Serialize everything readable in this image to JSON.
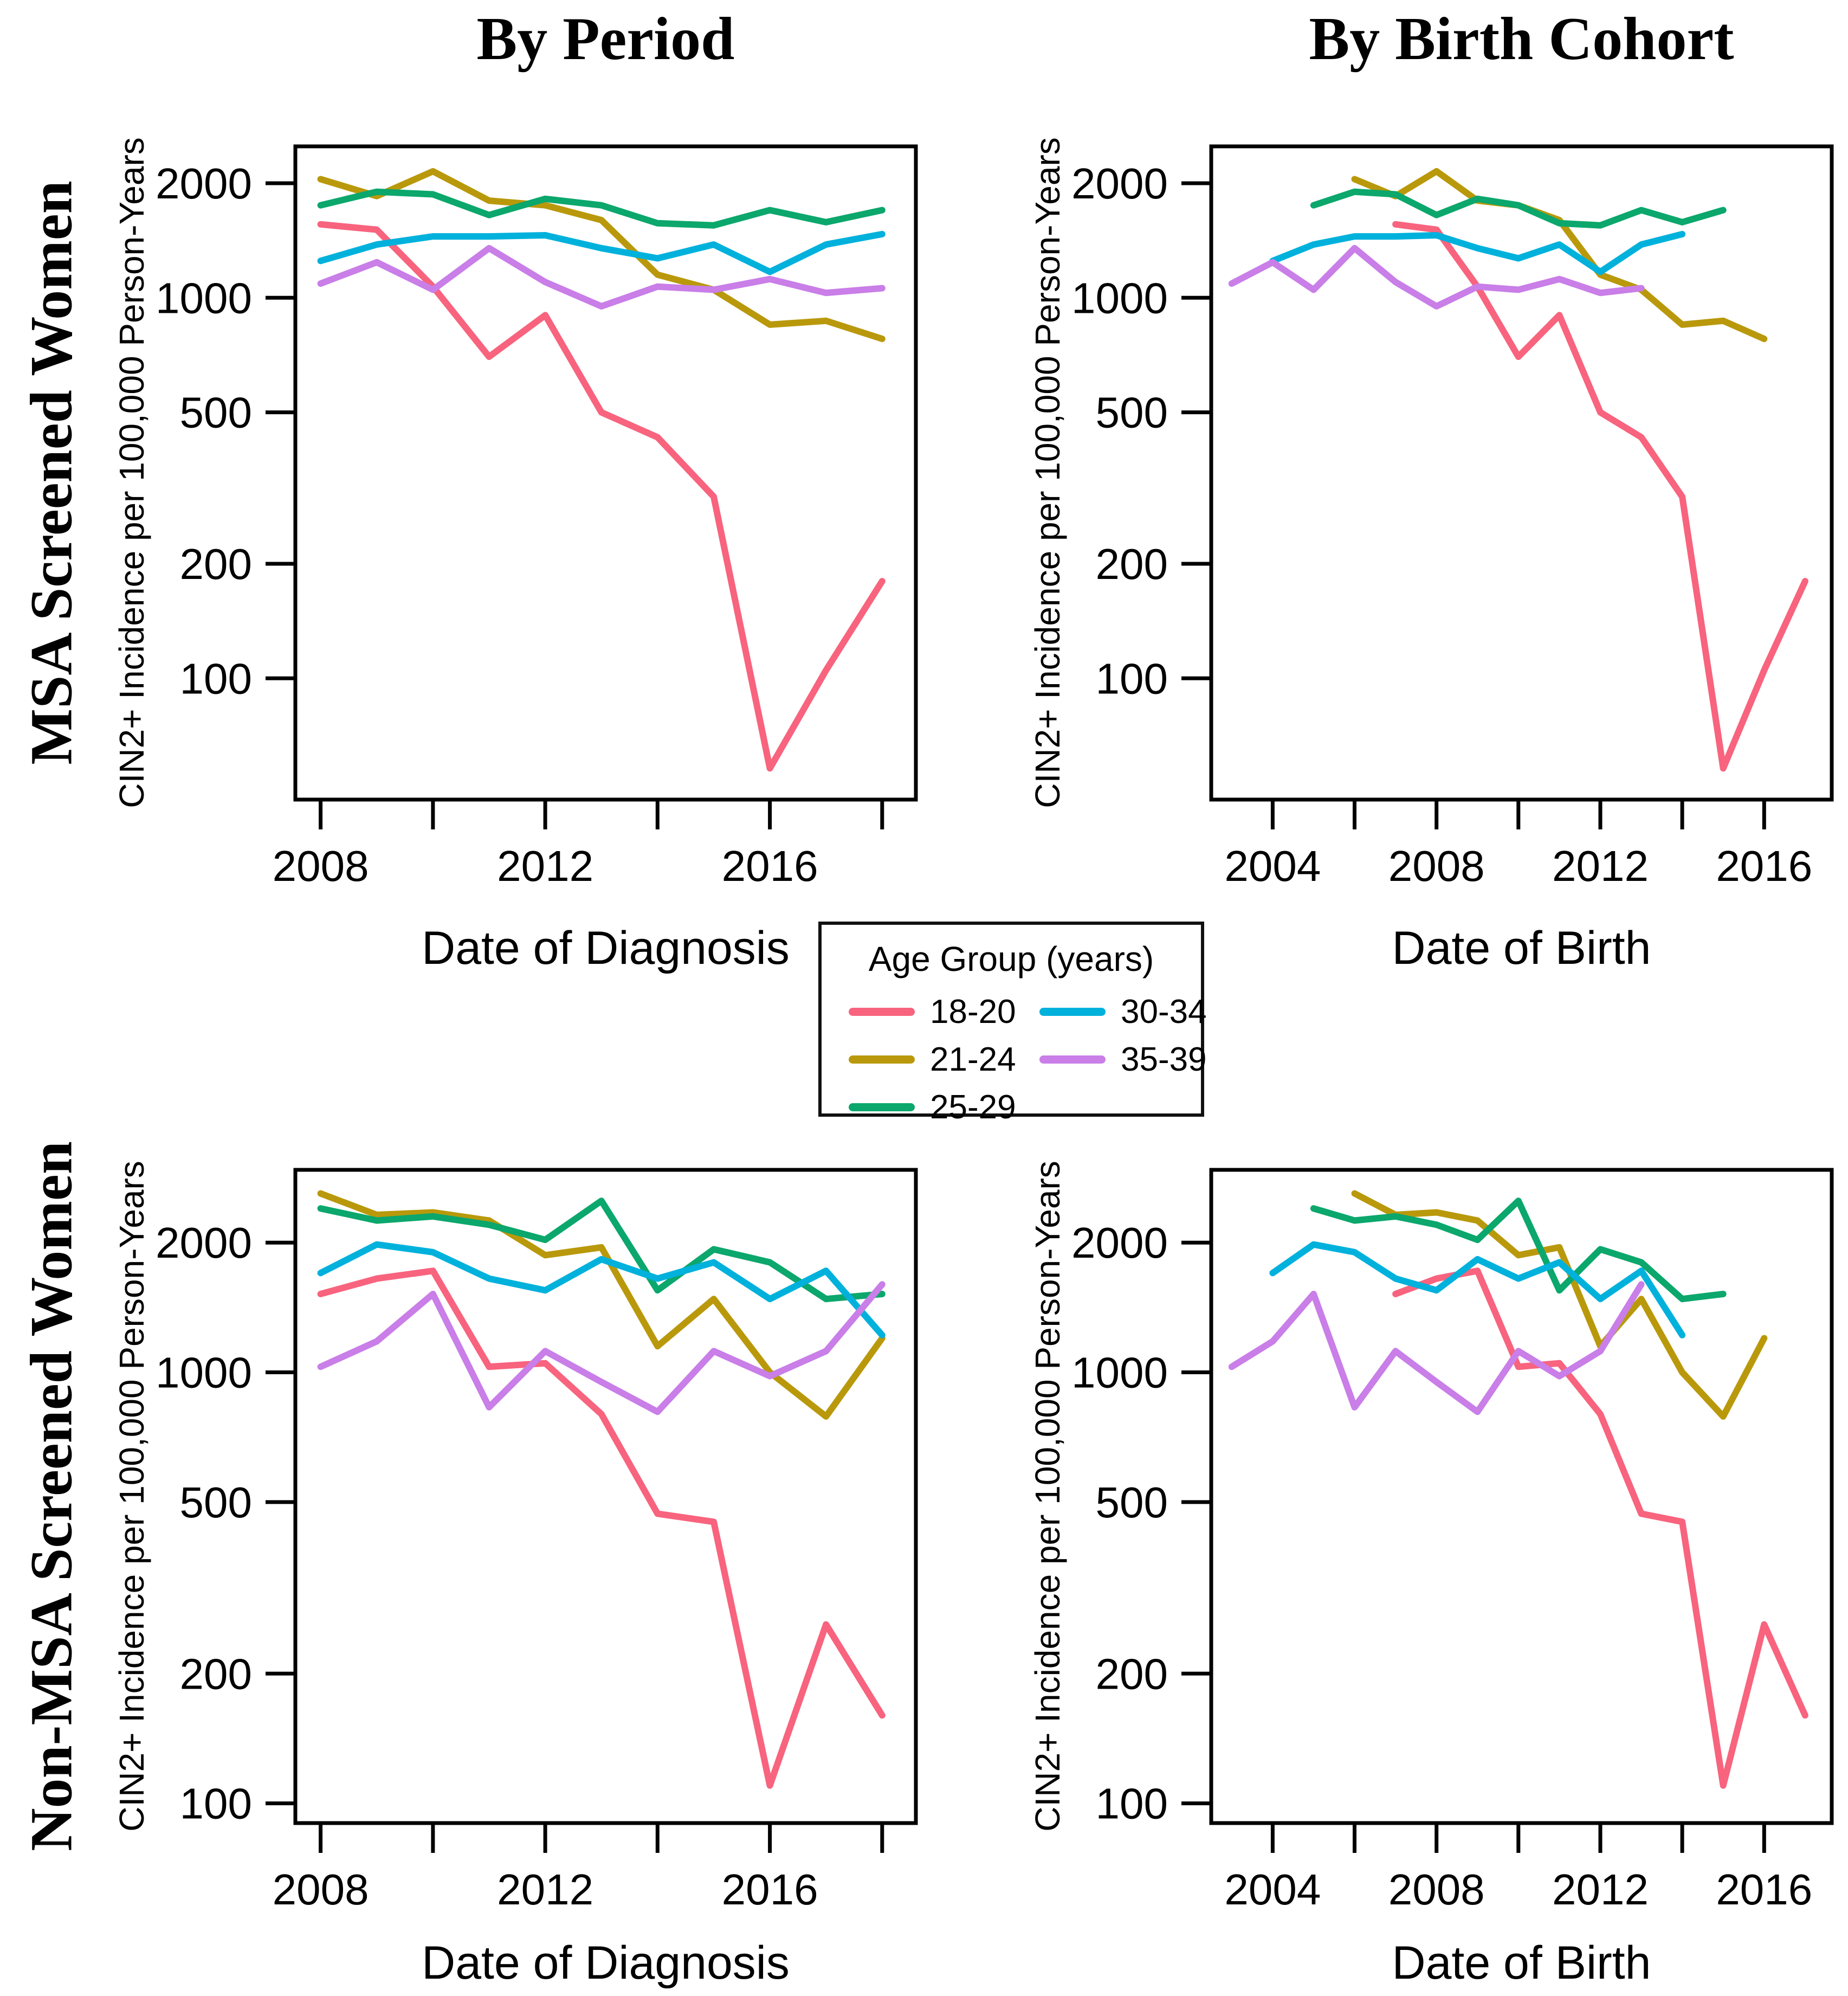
{
  "figure": {
    "column_titles": [
      "By Period",
      "By Birth Cohort"
    ],
    "row_labels": [
      "MSA Screened Women",
      "Non-MSA Screened Women"
    ],
    "y_axis_label": "CIN2+ Incidence per 100,000 Person-Years",
    "x_axis_label_period": "Date of Diagnosis",
    "x_axis_label_cohort": "Date of Birth"
  },
  "legend": {
    "title": "Age Group (years)",
    "items": [
      {
        "label": "18-20",
        "color": "#F8637E"
      },
      {
        "label": "21-24",
        "color": "#B9990B"
      },
      {
        "label": "25-29",
        "color": "#0BA76C"
      },
      {
        "label": "30-34",
        "color": "#00B1DC"
      },
      {
        "label": "35-39",
        "color": "#C97EE8"
      }
    ]
  },
  "chart_data": [
    {
      "id": "msa-period",
      "type": "line",
      "panel_row": "MSA Screened Women",
      "panel_column": "By Period",
      "title": "By Period",
      "xlabel": "Date of Diagnosis",
      "ylabel": "CIN2+ Incidence per 100,000 Person-Years",
      "x_scale": "linear",
      "y_scale": "log",
      "xlim": [
        2007.55,
        2018.6
      ],
      "ylim": [
        48,
        2500
      ],
      "x_ticks": [
        2008,
        2010,
        2012,
        2014,
        2016,
        2018
      ],
      "x_labeled_ticks": [
        2008,
        2012,
        2016
      ],
      "y_ticks": [
        100,
        200,
        500,
        1000,
        2000
      ],
      "grid": false,
      "series": [
        {
          "name": "18-20",
          "x": [
            2008,
            2009,
            2010,
            2011,
            2012,
            2013,
            2014,
            2015,
            2016,
            2017,
            2018
          ],
          "y": [
            1560,
            1510,
            1070,
            700,
            900,
            500,
            430,
            300,
            58,
            105,
            180
          ]
        },
        {
          "name": "21-24",
          "x": [
            2008,
            2009,
            2010,
            2011,
            2012,
            2013,
            2014,
            2015,
            2016,
            2017,
            2018
          ],
          "y": [
            2050,
            1850,
            2150,
            1800,
            1750,
            1600,
            1150,
            1050,
            850,
            870,
            780
          ]
        },
        {
          "name": "25-29",
          "x": [
            2008,
            2009,
            2010,
            2011,
            2012,
            2013,
            2014,
            2015,
            2016,
            2017,
            2018
          ],
          "y": [
            1750,
            1900,
            1870,
            1650,
            1820,
            1750,
            1570,
            1550,
            1700,
            1580,
            1700
          ]
        },
        {
          "name": "30-34",
          "x": [
            2008,
            2009,
            2010,
            2011,
            2012,
            2013,
            2014,
            2015,
            2016,
            2017,
            2018
          ],
          "y": [
            1250,
            1380,
            1450,
            1450,
            1460,
            1350,
            1270,
            1380,
            1170,
            1380,
            1470
          ]
        },
        {
          "name": "35-39",
          "x": [
            2008,
            2009,
            2010,
            2011,
            2012,
            2013,
            2014,
            2015,
            2016,
            2017,
            2018
          ],
          "y": [
            1090,
            1240,
            1050,
            1350,
            1100,
            950,
            1070,
            1050,
            1120,
            1030,
            1060
          ]
        }
      ]
    },
    {
      "id": "msa-cohort",
      "type": "line",
      "panel_row": "MSA Screened Women",
      "panel_column": "By Birth Cohort",
      "title": "By Birth Cohort",
      "xlabel": "Date of Birth",
      "ylabel": "CIN2+ Incidence per 100,000 Person-Years",
      "x_scale": "linear",
      "y_scale": "log",
      "xlim": [
        2002.5,
        2017.65
      ],
      "ylim": [
        48,
        2500
      ],
      "x_ticks": [
        2004,
        2006,
        2008,
        2010,
        2012,
        2014,
        2016
      ],
      "x_labeled_ticks": [
        2004,
        2008,
        2012,
        2016
      ],
      "y_ticks": [
        100,
        200,
        500,
        1000,
        2000
      ],
      "grid": false,
      "series": [
        {
          "name": "18-20",
          "x": [
            2007,
            2008,
            2009,
            2010,
            2011,
            2012,
            2013,
            2014,
            2015,
            2016,
            2017
          ],
          "y": [
            1560,
            1510,
            1070,
            700,
            900,
            500,
            430,
            300,
            58,
            105,
            180
          ]
        },
        {
          "name": "21-24",
          "x": [
            2006,
            2007,
            2008,
            2009,
            2010,
            2011,
            2012,
            2013,
            2014,
            2015,
            2016
          ],
          "y": [
            2050,
            1850,
            2150,
            1800,
            1750,
            1600,
            1150,
            1050,
            850,
            870,
            780
          ]
        },
        {
          "name": "25-29",
          "x": [
            2005,
            2006,
            2007,
            2008,
            2009,
            2010,
            2011,
            2012,
            2013,
            2014,
            2015
          ],
          "y": [
            1750,
            1900,
            1870,
            1650,
            1820,
            1750,
            1570,
            1550,
            1700,
            1580,
            1700
          ]
        },
        {
          "name": "30-34",
          "x": [
            2004,
            2005,
            2006,
            2007,
            2008,
            2009,
            2010,
            2011,
            2012,
            2013,
            2014
          ],
          "y": [
            1250,
            1380,
            1450,
            1450,
            1460,
            1350,
            1270,
            1380,
            1170,
            1380,
            1470
          ]
        },
        {
          "name": "35-39",
          "x": [
            2003,
            2004,
            2005,
            2006,
            2007,
            2008,
            2009,
            2010,
            2011,
            2012,
            2013
          ],
          "y": [
            1090,
            1240,
            1050,
            1350,
            1100,
            950,
            1070,
            1050,
            1120,
            1030,
            1060
          ]
        }
      ]
    },
    {
      "id": "nonmsa-period",
      "type": "line",
      "panel_row": "Non-MSA Screened Women",
      "panel_column": "By Period",
      "title": "By Period",
      "xlabel": "Date of Diagnosis",
      "ylabel": "CIN2+ Incidence per 100,000 Person-Years",
      "x_scale": "linear",
      "y_scale": "log",
      "xlim": [
        2007.55,
        2018.6
      ],
      "ylim": [
        90,
        2950
      ],
      "x_ticks": [
        2008,
        2010,
        2012,
        2014,
        2016,
        2018
      ],
      "x_labeled_ticks": [
        2008,
        2012,
        2016
      ],
      "y_ticks": [
        100,
        200,
        500,
        1000,
        2000
      ],
      "grid": false,
      "series": [
        {
          "name": "18-20",
          "x": [
            2008,
            2009,
            2010,
            2011,
            2012,
            2013,
            2014,
            2015,
            2016,
            2017,
            2018
          ],
          "y": [
            1520,
            1650,
            1720,
            1030,
            1050,
            800,
            470,
            450,
            110,
            260,
            160
          ]
        },
        {
          "name": "21-24",
          "x": [
            2008,
            2009,
            2010,
            2011,
            2012,
            2013,
            2014,
            2015,
            2016,
            2017,
            2018
          ],
          "y": [
            2600,
            2320,
            2350,
            2250,
            1870,
            1950,
            1150,
            1480,
            1000,
            790,
            1200
          ]
        },
        {
          "name": "25-29",
          "x": [
            2008,
            2009,
            2010,
            2011,
            2012,
            2013,
            2014,
            2015,
            2016,
            2017,
            2018
          ],
          "y": [
            2400,
            2250,
            2300,
            2200,
            2030,
            2500,
            1550,
            1930,
            1800,
            1480,
            1520
          ]
        },
        {
          "name": "30-34",
          "x": [
            2008,
            2009,
            2010,
            2011,
            2012,
            2013,
            2014,
            2015,
            2016,
            2017,
            2018
          ],
          "y": [
            1700,
            1980,
            1900,
            1650,
            1550,
            1830,
            1650,
            1800,
            1480,
            1720,
            1220
          ]
        },
        {
          "name": "35-39",
          "x": [
            2008,
            2009,
            2010,
            2011,
            2012,
            2013,
            2014,
            2015,
            2016,
            2017,
            2018
          ],
          "y": [
            1030,
            1180,
            1520,
            830,
            1120,
            950,
            810,
            1120,
            980,
            1120,
            1600
          ]
        }
      ]
    },
    {
      "id": "nonmsa-cohort",
      "type": "line",
      "panel_row": "Non-MSA Screened Women",
      "panel_column": "By Birth Cohort",
      "title": "By Birth Cohort",
      "xlabel": "Date of Birth",
      "ylabel": "CIN2+ Incidence per 100,000 Person-Years",
      "x_scale": "linear",
      "y_scale": "log",
      "xlim": [
        2002.5,
        2017.65
      ],
      "ylim": [
        90,
        2950
      ],
      "x_ticks": [
        2004,
        2006,
        2008,
        2010,
        2012,
        2014,
        2016
      ],
      "x_labeled_ticks": [
        2004,
        2008,
        2012,
        2016
      ],
      "y_ticks": [
        100,
        200,
        500,
        1000,
        2000
      ],
      "grid": false,
      "series": [
        {
          "name": "18-20",
          "x": [
            2007,
            2008,
            2009,
            2010,
            2011,
            2012,
            2013,
            2014,
            2015,
            2016,
            2017
          ],
          "y": [
            1520,
            1650,
            1720,
            1030,
            1050,
            800,
            470,
            450,
            110,
            260,
            160
          ]
        },
        {
          "name": "21-24",
          "x": [
            2006,
            2007,
            2008,
            2009,
            2010,
            2011,
            2012,
            2013,
            2014,
            2015,
            2016
          ],
          "y": [
            2600,
            2320,
            2350,
            2250,
            1870,
            1950,
            1150,
            1480,
            1000,
            790,
            1200
          ]
        },
        {
          "name": "25-29",
          "x": [
            2005,
            2006,
            2007,
            2008,
            2009,
            2010,
            2011,
            2012,
            2013,
            2014,
            2015
          ],
          "y": [
            2400,
            2250,
            2300,
            2200,
            2030,
            2500,
            1550,
            1930,
            1800,
            1480,
            1520
          ]
        },
        {
          "name": "30-34",
          "x": [
            2004,
            2005,
            2006,
            2007,
            2008,
            2009,
            2010,
            2011,
            2012,
            2013,
            2014
          ],
          "y": [
            1700,
            1980,
            1900,
            1650,
            1550,
            1830,
            1650,
            1800,
            1480,
            1720,
            1220
          ]
        },
        {
          "name": "35-39",
          "x": [
            2003,
            2004,
            2005,
            2006,
            2007,
            2008,
            2009,
            2010,
            2011,
            2012,
            2013
          ],
          "y": [
            1030,
            1180,
            1520,
            830,
            1120,
            950,
            810,
            1120,
            980,
            1120,
            1600
          ]
        }
      ]
    }
  ]
}
